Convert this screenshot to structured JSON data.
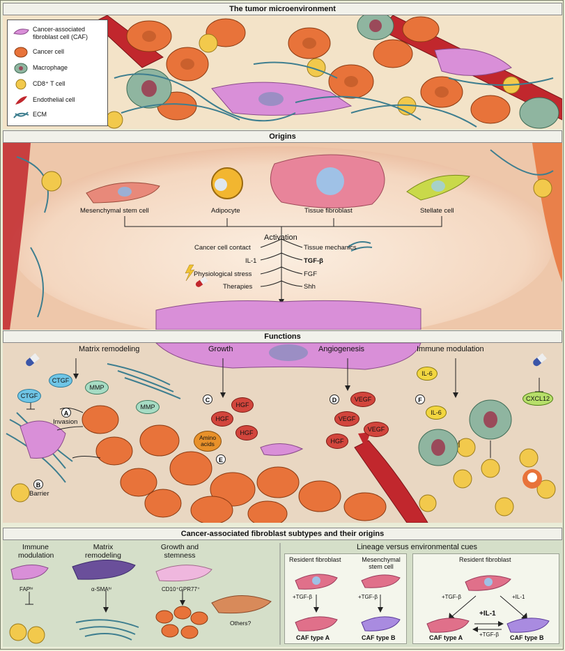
{
  "sections": {
    "tme_title": "The tumor microenvironment",
    "origins_title": "Origins",
    "functions_title": "Functions",
    "subtypes_title": "Cancer-associated fibroblast subtypes and their origins"
  },
  "legend": {
    "items": [
      {
        "label": "Cancer-associated fibroblast cell (CAF)",
        "color": "#d98fd8",
        "icon": "caf-icon"
      },
      {
        "label": "Cancer cell",
        "color": "#e8733a",
        "icon": "cancer-cell-icon"
      },
      {
        "label": "Macrophage",
        "color": "#8fb5a0",
        "icon": "macrophage-icon"
      },
      {
        "label": "CD8⁺ T cell",
        "color": "#f2c94c",
        "icon": "t-cell-icon"
      },
      {
        "label": "Endothelial cell",
        "color": "#c1272d",
        "icon": "endothelial-icon"
      },
      {
        "label": "ECM",
        "color": "#3e7e8f",
        "icon": "ecm-icon"
      }
    ]
  },
  "origins": {
    "cells": [
      "Mesenchymal stem cell",
      "Adipocyte",
      "Tissue fibroblast",
      "Stellate cell"
    ],
    "activation_label": "Activation",
    "left_cues": [
      "Cancer cell contact",
      "IL-1",
      "Physiological stress",
      "Therapies"
    ],
    "right_cues": [
      "Tissue mechanics",
      "TGF-β",
      "FGF",
      "Shh"
    ]
  },
  "functions": {
    "headers": [
      "Matrix remodeling",
      "Growth",
      "Angiogenesis",
      "Immune modulation"
    ],
    "labels": {
      "A": "A",
      "B": "B",
      "C": "C",
      "D": "D",
      "E": "E",
      "F": "F",
      "invasion": "Invasion",
      "barrier": "Barrier",
      "ctgf": "CTGF",
      "mmp": "MMP",
      "hgf": "HGF",
      "amino": "Amino acids",
      "vegf": "VEGF",
      "il6": "IL-6",
      "cxcl12": "CXCL12"
    }
  },
  "subtypes": {
    "groups": [
      "Immune modulation",
      "Matrix remodeling",
      "Growth and stemness",
      "Others?"
    ],
    "markers": [
      "FAPʰⁱ",
      "α-SMAʰⁱ",
      "CD10⁺GPR77⁺"
    ],
    "lineage_title": "Lineage versus environmental cues",
    "lineage": {
      "resident": "Resident fibroblast",
      "msc": "Mesenchymal stem cell",
      "tgf": "+TGF-β",
      "il1": "+IL-1",
      "il1_big": "+IL-1",
      "caf_a": "CAF type A",
      "caf_b": "CAF type B"
    }
  }
}
